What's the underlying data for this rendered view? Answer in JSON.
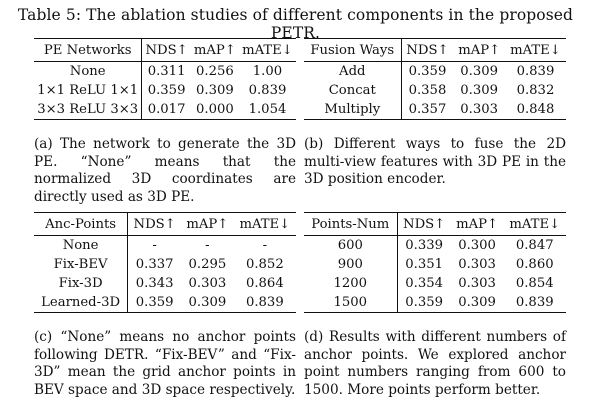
{
  "title": "Table 5: The ablation studies of different components in the proposed PETR.",
  "tables": {
    "a": {
      "headers": [
        "PE Networks",
        "NDS↑",
        "mAP↑",
        "mATE↓"
      ],
      "rows": [
        {
          "label": "None",
          "nds": "0.311",
          "map": "0.256",
          "mate": "1.00"
        },
        {
          "label": "1×1 ReLU 1×1",
          "nds": "0.359",
          "map": "0.309",
          "mate": "0.839"
        },
        {
          "label": "3×3 ReLU 3×3",
          "nds": "0.017",
          "map": "0.000",
          "mate": "1.054"
        }
      ],
      "caption": "(a) The network to generate the 3D PE. “None” means that the normalized 3D coordinates are directly used as 3D PE."
    },
    "b": {
      "headers": [
        "Fusion Ways",
        "NDS↑",
        "mAP↑",
        "mATE↓"
      ],
      "rows": [
        {
          "label": "Add",
          "nds": "0.359",
          "map": "0.309",
          "mate": "0.839"
        },
        {
          "label": "Concat",
          "nds": "0.358",
          "map": "0.309",
          "mate": "0.832"
        },
        {
          "label": "Multiply",
          "nds": "0.357",
          "map": "0.303",
          "mate": "0.848"
        }
      ],
      "caption": "(b) Different ways to fuse the 2D multi-view features with 3D PE in the 3D position encoder."
    },
    "c": {
      "headers": [
        "Anc-Points",
        "NDS↑",
        "mAP↑",
        "mATE↓"
      ],
      "rows": [
        {
          "label": "None",
          "nds": "-",
          "map": "-",
          "mate": "-"
        },
        {
          "label": "Fix-BEV",
          "nds": "0.337",
          "map": "0.295",
          "mate": "0.852"
        },
        {
          "label": "Fix-3D",
          "nds": "0.343",
          "map": "0.303",
          "mate": "0.864"
        },
        {
          "label": "Learned-3D",
          "nds": "0.359",
          "map": "0.309",
          "mate": "0.839"
        }
      ],
      "caption": "(c) “None” means no anchor points following DETR. “Fix-BEV” and “Fix-3D” mean the grid anchor points in BEV space and 3D space respectively."
    },
    "d": {
      "headers": [
        "Points-Num",
        "NDS↑",
        "mAP↑",
        "mATE↓"
      ],
      "rows": [
        {
          "label": "600",
          "nds": "0.339",
          "map": "0.300",
          "mate": "0.847"
        },
        {
          "label": "900",
          "nds": "0.351",
          "map": "0.303",
          "mate": "0.860"
        },
        {
          "label": "1200",
          "nds": "0.354",
          "map": "0.303",
          "mate": "0.854"
        },
        {
          "label": "1500",
          "nds": "0.359",
          "map": "0.309",
          "mate": "0.839"
        }
      ],
      "caption": "(d) Results with different numbers of anchor points. We explored anchor point numbers ranging from 600 to 1500. More points perform better."
    }
  }
}
